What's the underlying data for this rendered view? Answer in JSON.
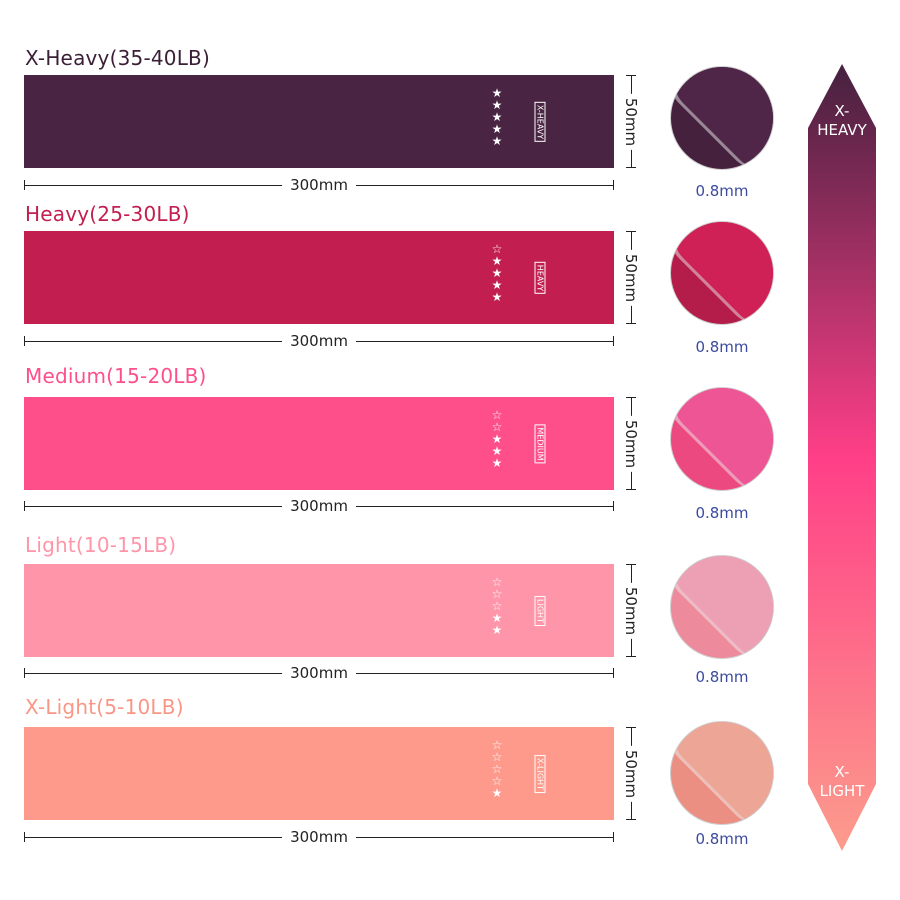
{
  "bands": [
    {
      "title": "X-Heavy(35-40LB)",
      "tag": "X-HEAVY",
      "stars": 5,
      "max_stars": 5,
      "length": "300mm",
      "width": "50mm",
      "thickness": "0.8mm",
      "color": "#4a2443",
      "title_color": "#3a1f37"
    },
    {
      "title": "Heavy(25-30LB)",
      "tag": "HEAVY",
      "stars": 4,
      "max_stars": 5,
      "length": "300mm",
      "width": "50mm",
      "thickness": "0.8mm",
      "color": "#c21f50",
      "title_color": "#c21f50"
    },
    {
      "title": "Medium(15-20LB)",
      "tag": "MEDIUM",
      "stars": 3,
      "max_stars": 5,
      "length": "300mm",
      "width": "50mm",
      "thickness": "0.8mm",
      "color": "#ff4f8b",
      "title_color": "#ff4f8b"
    },
    {
      "title": "Light(10-15LB)",
      "tag": "LIGHT",
      "stars": 2,
      "max_stars": 5,
      "length": "300mm",
      "width": "50mm",
      "thickness": "0.8mm",
      "color": "#ff95a9",
      "title_color": "#ff95a9"
    },
    {
      "title": "X-Light(5-10LB)",
      "tag": "X-LIGHT",
      "stars": 1,
      "max_stars": 5,
      "length": "300mm",
      "width": "50mm",
      "thickness": "0.8mm",
      "color": "#fd9a8c",
      "title_color": "#f99686"
    }
  ],
  "scale": {
    "top_label_1": "X-",
    "top_label_2": "HEAVY",
    "bottom_label_1": "X-",
    "bottom_label_2": "LIGHT",
    "top_color": "#45213f",
    "mid_color": "#ff3f88",
    "bottom_color": "#fc9c8c"
  }
}
